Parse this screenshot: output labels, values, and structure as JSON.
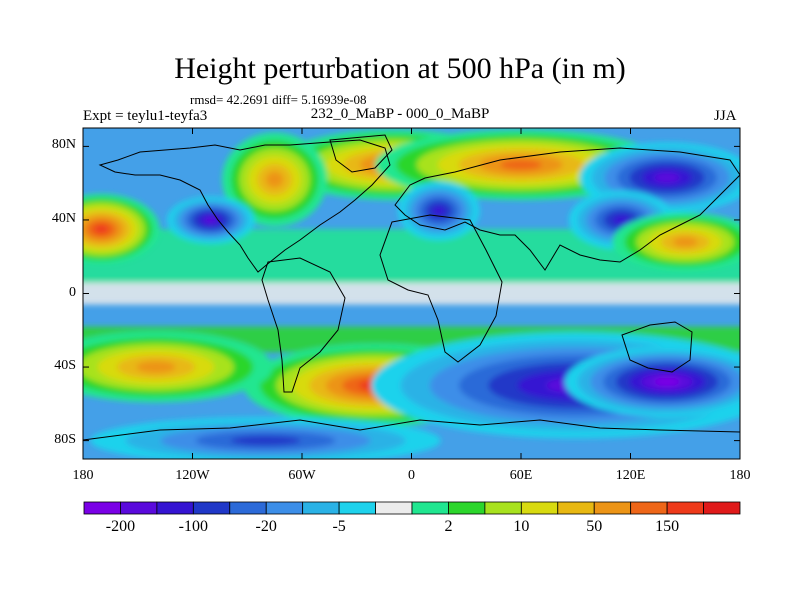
{
  "title": "Height perturbation at 500 hPa (in m)",
  "stats": "rmsd= 42.2691 diff= 5.16939e-08",
  "experiment": "Expt = teylu1-teyfa3",
  "period": "232_0_MaBP - 000_0_MaBP",
  "season": "JJA",
  "map": {
    "type": "filled-contour",
    "projection": "cylindrical-equidistant",
    "lon_range": [
      -180,
      180
    ],
    "lat_range": [
      -90,
      90
    ],
    "lat_ticks": [
      {
        "value": 80,
        "label": "80N"
      },
      {
        "value": 40,
        "label": "40N"
      },
      {
        "value": 0,
        "label": "0"
      },
      {
        "value": -40,
        "label": "40S"
      },
      {
        "value": -80,
        "label": "80S"
      }
    ],
    "lon_ticks": [
      {
        "value": -180,
        "label": "180"
      },
      {
        "value": -120,
        "label": "120W"
      },
      {
        "value": -60,
        "label": "60W"
      },
      {
        "value": 0,
        "label": "0"
      },
      {
        "value": 60,
        "label": "60E"
      },
      {
        "value": 120,
        "label": "120E"
      },
      {
        "value": 180,
        "label": "180"
      }
    ],
    "background_color": "#ececec",
    "features": [
      {
        "name": "north-pacific-high",
        "lon": -170,
        "lat": 35,
        "rx": 20,
        "ry": 12,
        "level": 5
      },
      {
        "name": "north-atlantic-high",
        "lon": -10,
        "lat": 70,
        "rx": 40,
        "ry": 12,
        "level": 4
      },
      {
        "name": "north-america-high",
        "lon": -75,
        "lat": 62,
        "rx": 18,
        "ry": 16,
        "level": 3
      },
      {
        "name": "siberia-high",
        "lon": 60,
        "lat": 70,
        "rx": 50,
        "ry": 12,
        "level": 4
      },
      {
        "name": "northeast-asia-low",
        "lon": 140,
        "lat": 63,
        "rx": 30,
        "ry": 12,
        "level": -4
      },
      {
        "name": "north-america-low",
        "lon": -110,
        "lat": 40,
        "rx": 15,
        "ry": 8,
        "level": -4
      },
      {
        "name": "europe-low",
        "lon": 15,
        "lat": 45,
        "rx": 14,
        "ry": 10,
        "level": -3
      },
      {
        "name": "asia-low",
        "lon": 115,
        "lat": 40,
        "rx": 18,
        "ry": 10,
        "level": -3
      },
      {
        "name": "pacific-ridge",
        "lon": 150,
        "lat": 28,
        "rx": 25,
        "ry": 10,
        "level": 3
      },
      {
        "name": "south-atlantic-high",
        "lon": -20,
        "lat": -50,
        "rx": 45,
        "ry": 14,
        "level": 5
      },
      {
        "name": "south-pacific-high",
        "lon": -140,
        "lat": -40,
        "rx": 40,
        "ry": 12,
        "level": 3
      },
      {
        "name": "southern-indian-low",
        "lon": 90,
        "lat": -50,
        "rx": 70,
        "ry": 18,
        "level": -4
      },
      {
        "name": "southern-pacific-low",
        "lon": 140,
        "lat": -48,
        "rx": 35,
        "ry": 12,
        "level": -5
      },
      {
        "name": "antarctic-low",
        "lon": -80,
        "lat": -80,
        "rx": 60,
        "ry": 8,
        "level": -2
      }
    ]
  },
  "colorbar": {
    "colors": [
      "#7a00e6",
      "#5a0adc",
      "#3514d2",
      "#2038c8",
      "#2c6ad8",
      "#3c8ee8",
      "#2ab2e6",
      "#1ed2ec",
      "#ececec",
      "#20e690",
      "#2cd62c",
      "#a8e21e",
      "#d8da10",
      "#e8b812",
      "#ec9416",
      "#ee6618",
      "#ee3a1a",
      "#e01a1a"
    ],
    "labels": [
      "-200",
      "-100",
      "-20",
      "-5",
      "2",
      "10",
      "50",
      "150"
    ]
  }
}
